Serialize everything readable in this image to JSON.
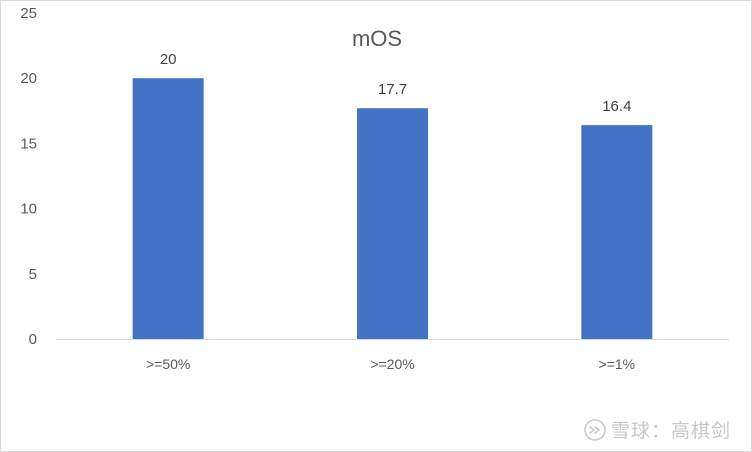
{
  "chart_data": {
    "type": "bar",
    "title": "mOS",
    "categories": [
      ">=50%",
      ">=20%",
      ">=1%"
    ],
    "values": [
      20,
      17.7,
      16.4
    ],
    "data_labels": [
      "20",
      "17.7",
      "16.4"
    ],
    "ylim": [
      0,
      25
    ],
    "yticks": [
      0,
      5,
      10,
      15,
      20,
      25
    ],
    "xlabel": "",
    "ylabel": "",
    "grid": false,
    "legend": "none",
    "bar_color": "#4472C4"
  },
  "watermark": {
    "text": "雪球：高棋剑",
    "icon": "snowball-logo-icon"
  }
}
